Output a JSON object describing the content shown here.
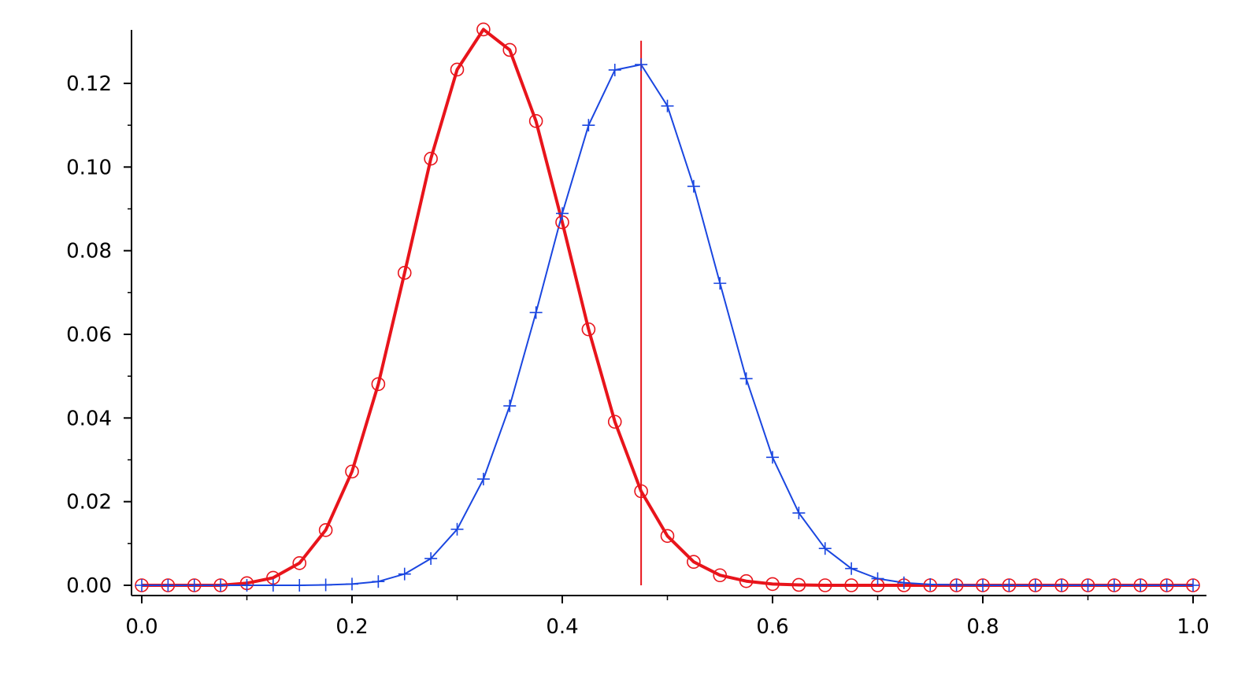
{
  "chart_data": {
    "type": "line",
    "title": "",
    "xlabel": "",
    "ylabel": "",
    "xlim": [
      0.0,
      1.0
    ],
    "ylim": [
      -0.003,
      0.133
    ],
    "xticks": [
      0.0,
      0.2,
      0.4,
      0.6,
      0.8,
      1.0
    ],
    "xtick_labels": [
      "0.0",
      "0.2",
      "0.4",
      "0.6",
      "0.8",
      "1.0"
    ],
    "yticks": [
      0.0,
      0.02,
      0.04,
      0.06,
      0.08,
      0.1,
      0.12
    ],
    "ytick_labels": [
      "0.00",
      "0.02",
      "0.04",
      "0.06",
      "0.08",
      "0.10",
      "0.12"
    ],
    "grid": false,
    "x": [
      0.0,
      0.025,
      0.05,
      0.075,
      0.1,
      0.125,
      0.15,
      0.175,
      0.2,
      0.225,
      0.25,
      0.275,
      0.3,
      0.325,
      0.35,
      0.375,
      0.4,
      0.425,
      0.45,
      0.475,
      0.5,
      0.525,
      0.55,
      0.575,
      0.6,
      0.625,
      0.65,
      0.675,
      0.7,
      0.725,
      0.75,
      0.775,
      0.8,
      0.825,
      0.85,
      0.875,
      0.9,
      0.925,
      0.95,
      0.975,
      1.0
    ],
    "series": [
      {
        "color": "#e8141b",
        "marker": "circle",
        "line_width": "thick",
        "values": [
          0.0,
          0.0,
          0.0,
          0.0,
          0.0005,
          0.0018,
          0.0053,
          0.0132,
          0.0272,
          0.0481,
          0.0747,
          0.102,
          0.1233,
          0.1329,
          0.128,
          0.111,
          0.0868,
          0.0612,
          0.0391,
          0.0225,
          0.0118,
          0.0056,
          0.0024,
          0.001,
          0.0003,
          0.0001,
          0.0,
          0.0,
          0.0,
          0.0,
          0.0,
          0.0,
          0.0,
          0.0,
          0.0,
          0.0,
          0.0,
          0.0,
          0.0,
          0.0,
          0.0
        ]
      },
      {
        "color": "#1a46e0",
        "marker": "plus",
        "line_width": "thin",
        "values": [
          0.0,
          0.0,
          0.0,
          0.0,
          0.0,
          0.0,
          0.0,
          0.0001,
          0.0003,
          0.0009,
          0.0027,
          0.0064,
          0.0134,
          0.0254,
          0.0429,
          0.0652,
          0.0889,
          0.11,
          0.1232,
          0.1245,
          0.1146,
          0.0954,
          0.0722,
          0.0494,
          0.0306,
          0.0173,
          0.0088,
          0.004,
          0.0016,
          0.0006,
          0.0002,
          0.0001,
          0.0,
          0.0,
          0.0,
          0.0,
          0.0,
          0.0,
          0.0,
          0.0,
          0.0
        ]
      }
    ],
    "vertical_line": {
      "x": 0.475,
      "y_top": 0.1302,
      "y_bottom": 0.0,
      "color": "#e8141b"
    }
  }
}
